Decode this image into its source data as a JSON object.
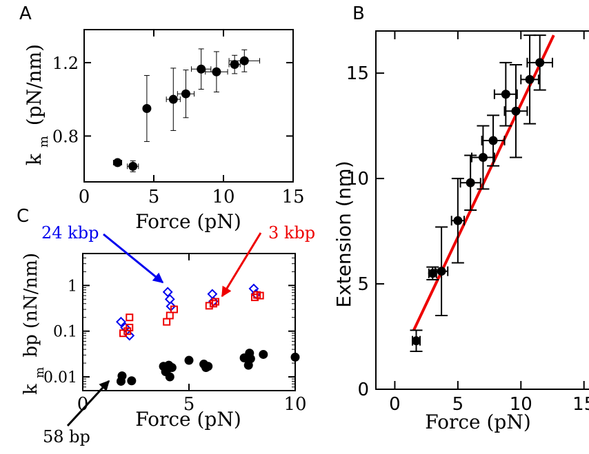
{
  "colors": {
    "black": "#000000",
    "blue": "#0000ee",
    "red": "#ee0000"
  },
  "panel_labels": {
    "a": "A",
    "b": "B",
    "c": "C"
  },
  "annotations": {
    "kbp24": "24 kbp",
    "kbp3": "3 kbp",
    "bp58": "58 bp"
  },
  "chart_data": [
    {
      "panel": "A",
      "type": "scatter",
      "xlabel": "Force (pN)",
      "ylabel_main": "k",
      "ylabel_sub": "m",
      "ylabel_rest": "(pN/nm)",
      "xlim": [
        0,
        15
      ],
      "ylim": [
        0.55,
        1.38
      ],
      "xticks": [
        0,
        5,
        10,
        15
      ],
      "yticks": [
        0.8,
        1.2
      ],
      "ytick_labels": [
        "0.8",
        "1.2"
      ],
      "points": [
        {
          "x": 2.4,
          "y": 0.655,
          "xerr": 0.3,
          "yerr": 0.0
        },
        {
          "x": 3.5,
          "y": 0.635,
          "xerr": 0.4,
          "yerr": 0.03
        },
        {
          "x": 4.5,
          "y": 0.95,
          "xerr": 0.0,
          "yerr": 0.18
        },
        {
          "x": 6.4,
          "y": 1.0,
          "xerr": 0.5,
          "yerr": 0.17
        },
        {
          "x": 7.3,
          "y": 1.03,
          "xerr": 0.6,
          "yerr": 0.13
        },
        {
          "x": 8.4,
          "y": 1.165,
          "xerr": 0.7,
          "yerr": 0.11
        },
        {
          "x": 9.5,
          "y": 1.15,
          "xerr": 0.8,
          "yerr": 0.11
        },
        {
          "x": 10.8,
          "y": 1.19,
          "xerr": 0.4,
          "yerr": 0.05
        },
        {
          "x": 11.5,
          "y": 1.21,
          "xerr": 1.1,
          "yerr": 0.06
        }
      ]
    },
    {
      "panel": "B",
      "type": "scatter",
      "xlabel": "Force (pN)",
      "ylabel": "Extension (nm)",
      "xlim": [
        -1.5,
        16
      ],
      "ylim": [
        0,
        17
      ],
      "xticks": [
        0,
        5,
        10,
        15
      ],
      "yticks": [
        0,
        5,
        10,
        15
      ],
      "points": [
        {
          "x": 1.7,
          "y": 2.3,
          "xerr": 0.3,
          "yerr": 0.5
        },
        {
          "x": 3.0,
          "y": 5.5,
          "xerr": 0.3,
          "yerr": 0.3
        },
        {
          "x": 3.7,
          "y": 5.6,
          "xerr": 0.5,
          "yerr": 2.1
        },
        {
          "x": 5.0,
          "y": 8.0,
          "xerr": 0.5,
          "yerr": 2.0
        },
        {
          "x": 6.0,
          "y": 9.8,
          "xerr": 0.8,
          "yerr": 1.3
        },
        {
          "x": 7.0,
          "y": 11.0,
          "xerr": 0.9,
          "yerr": 1.5
        },
        {
          "x": 7.8,
          "y": 11.8,
          "xerr": 0.9,
          "yerr": 1.2
        },
        {
          "x": 8.8,
          "y": 14.0,
          "xerr": 0.9,
          "yerr": 1.5
        },
        {
          "x": 9.6,
          "y": 13.2,
          "xerr": 0.9,
          "yerr": 2.2
        },
        {
          "x": 10.7,
          "y": 14.7,
          "xerr": 0.7,
          "yerr": 2.1
        },
        {
          "x": 11.5,
          "y": 15.5,
          "xerr": 1.0,
          "yerr": 1.3
        }
      ],
      "fit_line": {
        "x": [
          1.5,
          12.6
        ],
        "y": [
          2.8,
          16.8
        ]
      }
    },
    {
      "panel": "C",
      "type": "scatter",
      "xlabel": "Force (pN)",
      "ylabel_main": "k",
      "ylabel_sub": "m",
      "ylabel_rest": "bp (nN/nm)",
      "xlim": [
        0,
        10
      ],
      "ylim": [
        0.005,
        5
      ],
      "log_y": true,
      "xticks": [
        0,
        5,
        10
      ],
      "yticks": [
        0.01,
        0.1,
        1
      ],
      "ytick_labels": [
        "0.01",
        "0.1",
        "1"
      ],
      "series": [
        {
          "name": "24 kbp",
          "marker": "diamond",
          "x": [
            1.8,
            2.0,
            2.2,
            4.0,
            4.1,
            4.15,
            6.1,
            6.15,
            8.05,
            8.15
          ],
          "y": [
            0.16,
            0.12,
            0.08,
            0.72,
            0.5,
            0.35,
            0.65,
            0.45,
            0.85,
            0.65
          ]
        },
        {
          "name": "3 kbp",
          "marker": "square",
          "x": [
            1.9,
            2.1,
            2.2,
            2.2,
            3.95,
            4.1,
            4.3,
            5.95,
            6.15,
            6.25,
            8.1,
            8.2,
            8.35
          ],
          "y": [
            0.09,
            0.1,
            0.12,
            0.2,
            0.16,
            0.22,
            0.3,
            0.36,
            0.4,
            0.44,
            0.55,
            0.62,
            0.6
          ],
          "pointer": "3 kbp"
        },
        {
          "name": "58 bp",
          "marker": "circle",
          "x": [
            1.8,
            1.85,
            2.3,
            3.8,
            3.9,
            4.0,
            4.05,
            4.1,
            4.2,
            5.0,
            5.7,
            5.8,
            5.9,
            7.6,
            7.8,
            7.85,
            7.9,
            8.5,
            10.0
          ],
          "y": [
            0.008,
            0.0105,
            0.0082,
            0.017,
            0.013,
            0.015,
            0.018,
            0.01,
            0.016,
            0.023,
            0.019,
            0.016,
            0.017,
            0.026,
            0.018,
            0.033,
            0.025,
            0.031,
            0.027
          ]
        }
      ]
    }
  ]
}
